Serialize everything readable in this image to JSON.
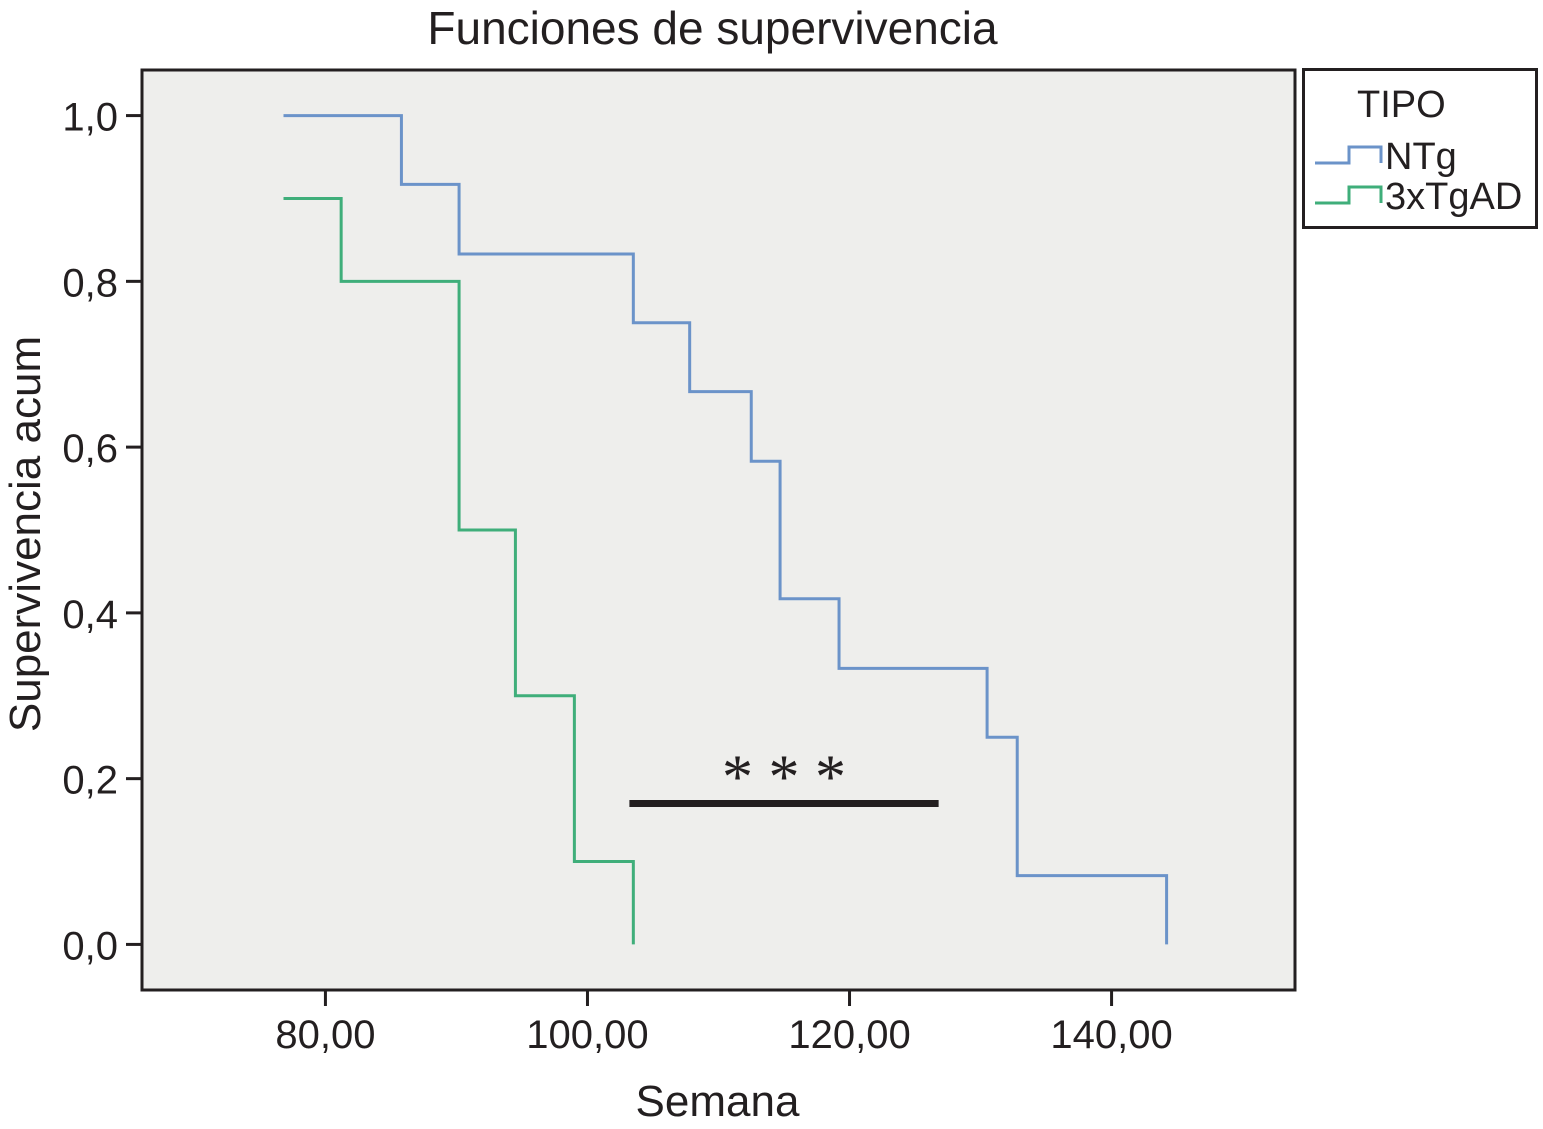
{
  "chart_data": {
    "type": "line",
    "title": "Funciones de supervivencia",
    "xlabel": "Semana",
    "ylabel": "Supervivencia acum",
    "xlim": [
      66,
      154
    ],
    "ylim": [
      -0.055,
      1.055
    ],
    "x_ticks": [
      80,
      100,
      120,
      140
    ],
    "x_tick_labels": [
      "80,00",
      "100,00",
      "120,00",
      "140,00"
    ],
    "y_ticks": [
      0,
      0.2,
      0.4,
      0.6,
      0.8,
      1.0
    ],
    "y_tick_labels": [
      "0,0",
      "0,2",
      "0,4",
      "0,6",
      "0,8",
      "1,0"
    ],
    "grid": false,
    "background": "#eeeeec",
    "legend": {
      "title": "TIPO",
      "position": "outside-right-top"
    },
    "series": [
      {
        "name": "NTg",
        "color": "#6b93c9",
        "step_x": [
          76.8,
          85.8,
          90.2,
          103.5,
          107.8,
          112.5,
          114.7,
          119.2,
          130.5,
          132.8,
          144.2
        ],
        "step_y": [
          1.0,
          0.917,
          0.833,
          0.75,
          0.667,
          0.583,
          0.417,
          0.333,
          0.25,
          0.083,
          0.0
        ]
      },
      {
        "name": "3xTgAD",
        "color": "#3fae7a",
        "step_x": [
          76.8,
          81.2,
          90.2,
          94.5,
          99.0,
          103.5
        ],
        "step_y": [
          0.9,
          0.8,
          0.5,
          0.3,
          0.1,
          0.0
        ]
      }
    ],
    "annotations": [
      {
        "text": "* * *",
        "x1": 103.2,
        "x2": 126.8,
        "y": 0.17
      }
    ]
  }
}
